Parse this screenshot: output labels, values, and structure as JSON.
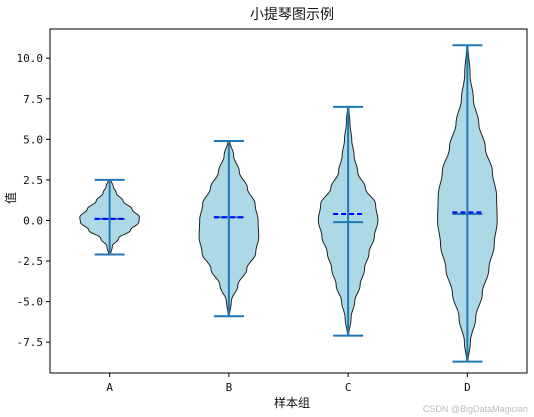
{
  "chart_data": {
    "type": "violin",
    "title": "小提琴图示例",
    "xlabel": "样本组",
    "ylabel": "值",
    "categories": [
      "A",
      "B",
      "C",
      "D"
    ],
    "ylim": [
      -9.4,
      11.8
    ],
    "yticks": [
      10.0,
      7.5,
      5.0,
      2.5,
      0.0,
      -2.5,
      -5.0,
      -7.5
    ],
    "ytick_labels": [
      "10.0",
      "7.5",
      "5.0",
      "2.5",
      "0.0",
      "-2.5",
      "-5.0",
      "-7.5"
    ],
    "fill_color": "#add8e6",
    "line_color": "#1f77b4",
    "mean_color": "#0000ff",
    "series": [
      {
        "name": "A",
        "min": -2.1,
        "max": 2.5,
        "median": 0.1,
        "mean": 0.1,
        "profile": [
          [
            -2.1,
            0.03
          ],
          [
            -1.6,
            0.09
          ],
          [
            -1.1,
            0.3
          ],
          [
            -0.6,
            0.7
          ],
          [
            -0.1,
            0.98
          ],
          [
            0.2,
            1.0
          ],
          [
            0.7,
            0.75
          ],
          [
            1.2,
            0.45
          ],
          [
            1.7,
            0.22
          ],
          [
            2.1,
            0.12
          ],
          [
            2.5,
            0.04
          ]
        ]
      },
      {
        "name": "B",
        "min": -5.9,
        "max": 4.9,
        "median": 0.2,
        "mean": 0.2,
        "profile": [
          [
            -5.9,
            0.02
          ],
          [
            -5.0,
            0.08
          ],
          [
            -4.0,
            0.3
          ],
          [
            -3.0,
            0.6
          ],
          [
            -2.0,
            0.9
          ],
          [
            -1.0,
            1.0
          ],
          [
            0.0,
            0.98
          ],
          [
            1.0,
            0.88
          ],
          [
            2.0,
            0.62
          ],
          [
            3.0,
            0.35
          ],
          [
            4.0,
            0.16
          ],
          [
            4.9,
            0.03
          ]
        ]
      },
      {
        "name": "C",
        "min": -7.1,
        "max": 7.0,
        "median": -0.1,
        "mean": 0.4,
        "profile": [
          [
            -7.1,
            0.02
          ],
          [
            -6.0,
            0.1
          ],
          [
            -5.0,
            0.22
          ],
          [
            -4.0,
            0.4
          ],
          [
            -3.0,
            0.55
          ],
          [
            -2.0,
            0.7
          ],
          [
            -1.0,
            0.88
          ],
          [
            0.0,
            1.0
          ],
          [
            1.0,
            0.92
          ],
          [
            2.0,
            0.58
          ],
          [
            3.0,
            0.32
          ],
          [
            4.0,
            0.2
          ],
          [
            5.0,
            0.12
          ],
          [
            6.0,
            0.06
          ],
          [
            7.0,
            0.02
          ]
        ]
      },
      {
        "name": "D",
        "min": -8.7,
        "max": 10.8,
        "median": 0.4,
        "mean": 0.5,
        "profile": [
          [
            -8.7,
            0.02
          ],
          [
            -7.5,
            0.1
          ],
          [
            -6.0,
            0.28
          ],
          [
            -4.5,
            0.5
          ],
          [
            -3.0,
            0.72
          ],
          [
            -1.5,
            0.9
          ],
          [
            0.0,
            1.0
          ],
          [
            1.5,
            0.98
          ],
          [
            3.0,
            0.84
          ],
          [
            4.5,
            0.6
          ],
          [
            6.0,
            0.38
          ],
          [
            7.5,
            0.2
          ],
          [
            9.0,
            0.09
          ],
          [
            10.8,
            0.02
          ]
        ]
      }
    ]
  },
  "watermark": "CSDN @BigDataMagician"
}
